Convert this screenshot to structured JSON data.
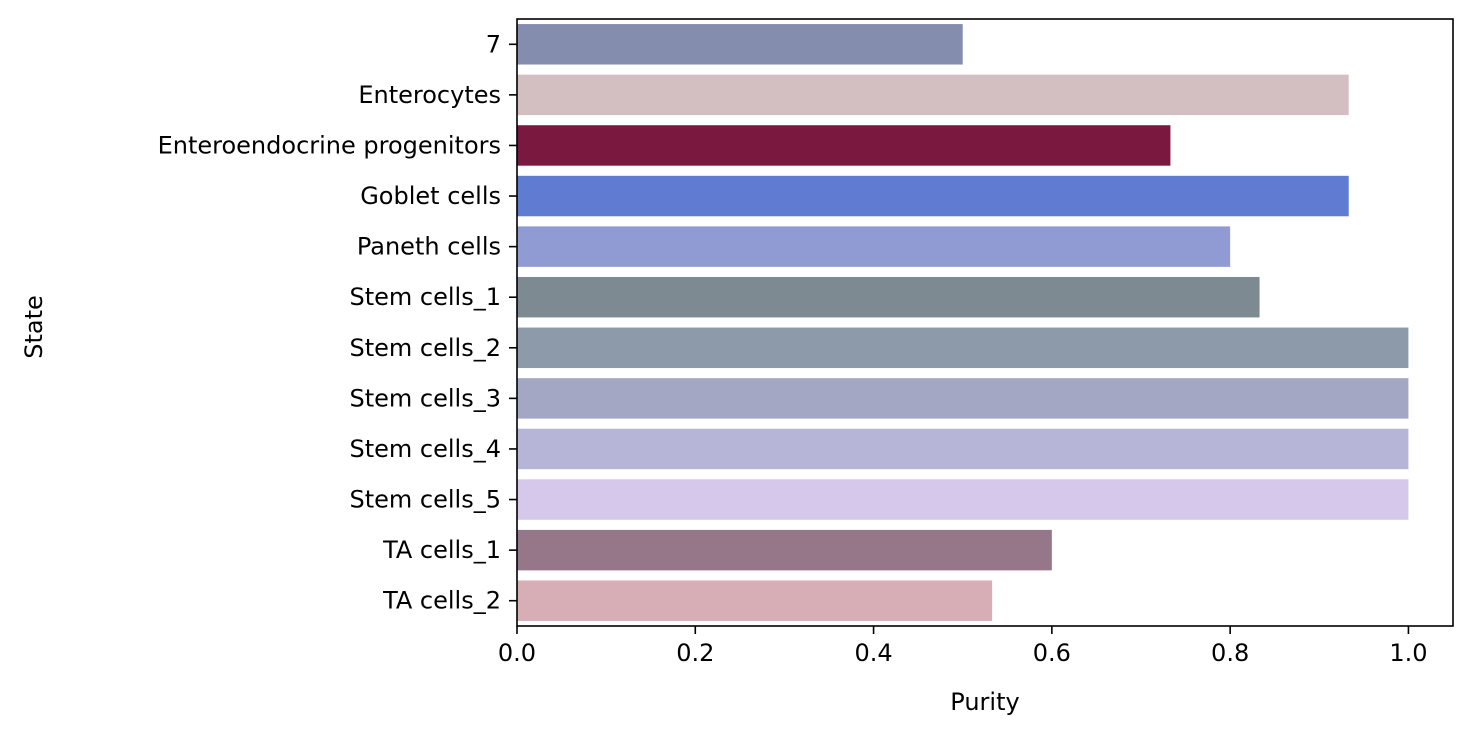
{
  "chart_data": {
    "type": "bar",
    "orientation": "horizontal",
    "xlabel": "Purity",
    "ylabel": "State",
    "xlim": [
      0,
      1.05
    ],
    "xticks": [
      "0.0",
      "0.2",
      "0.4",
      "0.6",
      "0.8",
      "1.0"
    ],
    "grid": false,
    "categories": [
      "7",
      "Enterocytes",
      "Enteroendocrine progenitors",
      "Goblet cells",
      "Paneth cells",
      "Stem cells_1",
      "Stem cells_2",
      "Stem cells_3",
      "Stem cells_4",
      "Stem cells_5",
      "TA cells_1",
      "TA cells_2"
    ],
    "values": [
      0.5,
      0.933,
      0.733,
      0.933,
      0.8,
      0.833,
      1.0,
      1.0,
      1.0,
      1.0,
      0.6,
      0.533
    ],
    "colors": [
      "#858daf",
      "#d3bec1",
      "#7b1840",
      "#5f7bd2",
      "#909bd4",
      "#7d8a91",
      "#8d9aaa",
      "#a3a7c3",
      "#b6b5d7",
      "#d5c8eb",
      "#967789",
      "#d7aeb6"
    ]
  }
}
